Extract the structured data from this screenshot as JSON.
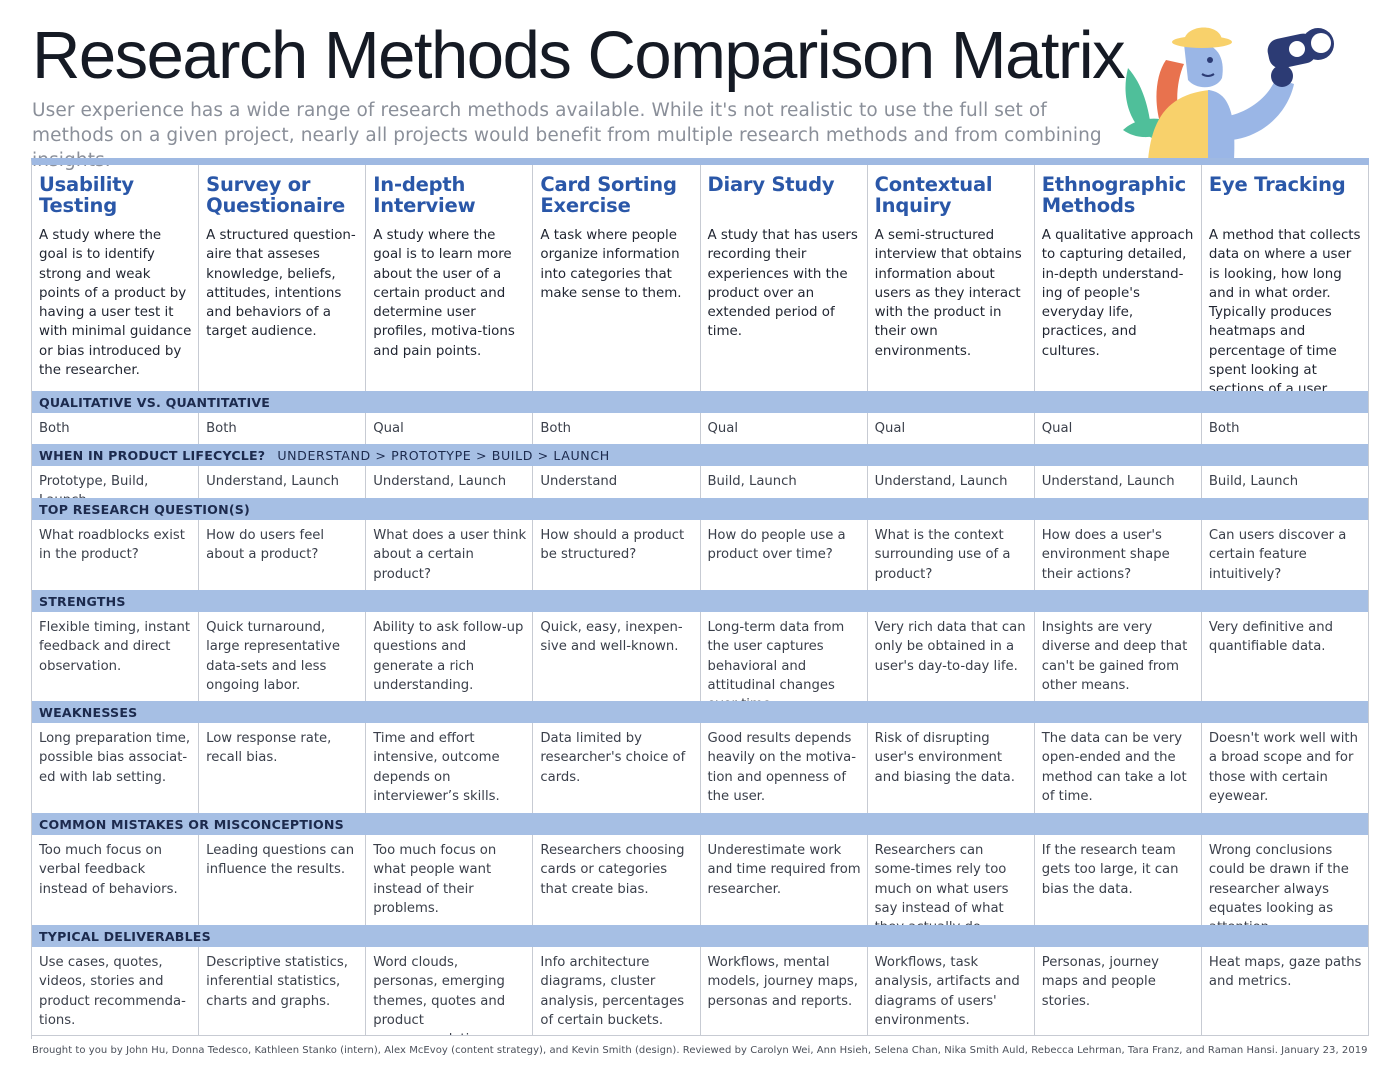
{
  "title": "Research Methods Comparison Matrix",
  "subtitle": "User experience has a wide range of research methods available. While it's not realistic to use the full set of methods on a given project, nearly all projects would benefit from multiple research methods and from combining insights.",
  "methods": [
    {
      "name": "Usability Testing",
      "description": "A study where the goal is to identify strong and weak points of a product by having a user test it with minimal guidance or bias introduced by the researcher."
    },
    {
      "name": "Survey or Questionaire",
      "description": "A structured question-aire that asseses knowledge, beliefs, attitudes, intentions and behaviors of a target audience."
    },
    {
      "name": "In-depth Interview",
      "description": "A study where the goal is to learn more about the user of a certain product and determine user profiles, motiva-tions and pain points."
    },
    {
      "name": "Card Sorting Exercise",
      "description": "A task where people organize information into categories that make sense to them."
    },
    {
      "name": "Diary Study",
      "description": "A study that has users recording their experiences with the product over an extended period of time."
    },
    {
      "name": "Contextual Inquiry",
      "description": "A semi-structured interview that obtains information about users as they interact with the product in their own environments."
    },
    {
      "name": "Ethnographic Methods",
      "description": "A qualitative approach to capturing detailed, in-depth understand-ing of people's everyday life, practices, and cultures."
    },
    {
      "name": "Eye Tracking",
      "description": "A method that collects data on where a user is looking, how long and in what order. Typically produces heatmaps and percentage of time spent looking at sections of a user interface."
    }
  ],
  "sections": [
    {
      "label": "QUALITATIVE VS. QUANTITATIVE",
      "extra": "",
      "height": 31,
      "cells": [
        "Both",
        "Both",
        "Qual",
        "Both",
        "Qual",
        "Qual",
        "Qual",
        "Both"
      ]
    },
    {
      "label": "WHEN IN PRODUCT LIFECYCLE?",
      "extra": "UNDERSTAND > PROTOTYPE > BUILD > LAUNCH",
      "height": 32,
      "cells": [
        "Prototype, Build, Launch",
        "Understand, Launch",
        "Understand, Launch",
        "Understand",
        "Build, Launch",
        "Understand, Launch",
        "Understand, Launch",
        "Build, Launch"
      ]
    },
    {
      "label": "TOP RESEARCH QUESTION(S)",
      "extra": "",
      "height": 70,
      "cells": [
        "What roadblocks exist in the product?",
        "How do users feel about a product?",
        "What does a user think about a certain product?",
        "How should a product be structured?",
        "How do people use a product over time?",
        "What is the context surrounding use of a product?",
        "How does a user's environment shape their actions?",
        "Can users discover a certain feature intuitively?"
      ]
    },
    {
      "label": "STRENGTHS",
      "extra": "",
      "height": 89,
      "cells": [
        "Flexible timing, instant feedback and direct observation.",
        "Quick turnaround, large representative data-sets and less ongoing labor.",
        "Ability to ask follow-up questions and generate a rich understanding.",
        "Quick, easy, inexpen-sive and well-known.",
        "Long-term data from the user captures behavioral and attitudinal changes over time.",
        "Very rich data that can only be obtained in a user's day-to-day life.",
        "Insights are very diverse and deep that can't be gained from other means.",
        "Very definitive and quantifiable data."
      ]
    },
    {
      "label": "WEAKNESSES",
      "extra": "",
      "height": 90,
      "cells": [
        "Long preparation time, possible bias associat-ed with lab setting.",
        "Low response rate, recall bias.",
        "Time and effort intensive, outcome depends on interviewer’s skills.",
        "Data limited by researcher's choice of cards.",
        "Good results depends heavily on the motiva-tion and openness of the user.",
        "Risk of disrupting user's environment and biasing the data.",
        "The data can be very open-ended and the method can take a lot of time.",
        "Doesn't work well with a broad scope and for those with certain eyewear."
      ]
    },
    {
      "label": "COMMON MISTAKES OR MISCONCEPTIONS",
      "extra": "",
      "height": 90,
      "cells": [
        "Too much focus on verbal feedback instead of behaviors.",
        "Leading questions can influence the results.",
        "Too much focus on what people want instead of their problems.",
        "Researchers choosing cards or categories that create bias.",
        "Underestimate work and time required from researcher.",
        "Researchers can some-times rely too much on what users say instead of what they actually do.",
        "If the research team gets too large, it can bias the data.",
        "Wrong conclusions could be drawn if the researcher always equates looking as attention."
      ]
    },
    {
      "label": "TYPICAL DELIVERABLES",
      "extra": "",
      "height": 89,
      "cells": [
        "Use cases, quotes, videos, stories and product recommenda-tions.",
        "Descriptive statistics, inferential statistics, charts and graphs.",
        "Word clouds, personas, emerging themes, quotes and product recommendations.",
        "Info architecture diagrams, cluster analysis, percentages of certain buckets.",
        "Workflows, mental models, journey maps, personas and reports.",
        "Workflows, task analysis, artifacts and diagrams of users' environments.",
        "Personas, journey maps and people stories.",
        "Heat maps, gaze paths and metrics."
      ]
    }
  ],
  "footer": "Brought to you by John Hu, Donna Tedesco, Kathleen Stanko (intern), Alex McEvoy (content strategy), and Kevin Smith (design). Reviewed by Carolyn Wei, Ann Hsieh, Selena Chan, Nika Smith Auld, Rebecca Lehrman, Tara Franz, and Raman Hansi. January 23, 2019",
  "colors": {
    "accent": "#2a57a8",
    "section_band": "#a6bfe4",
    "grid": "#c7cbd3"
  },
  "illustration": {
    "icon": "researcher-with-binoculars-icon"
  }
}
